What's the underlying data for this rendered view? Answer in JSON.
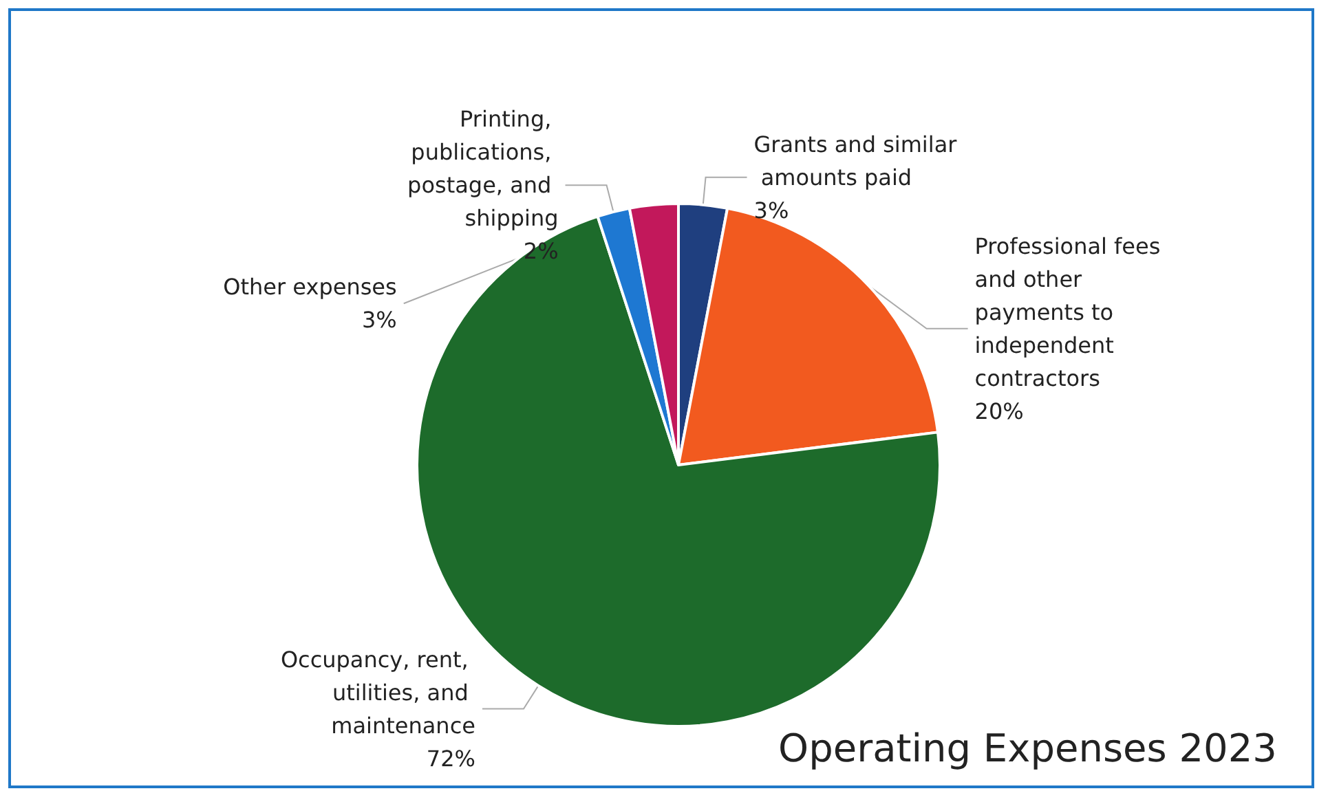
{
  "chart_data": {
    "type": "pie",
    "title": "Operating Expenses 2023",
    "categories": [
      "Grants and similar amounts paid",
      "Professional fees and other payments to independent contractors",
      "Occupancy, rent, utilities, and maintenance",
      "Printing, publications, postage, and shipping",
      "Other expenses"
    ],
    "values": [
      3,
      20,
      72,
      2,
      3
    ],
    "value_labels": [
      "3%",
      "20%",
      "72%",
      "2%",
      "3%"
    ],
    "colors": [
      "#1f3f7f",
      "#f25a1f",
      "#1d6b2b",
      "#1e78d2",
      "#c2185b"
    ],
    "legend": false
  }
}
